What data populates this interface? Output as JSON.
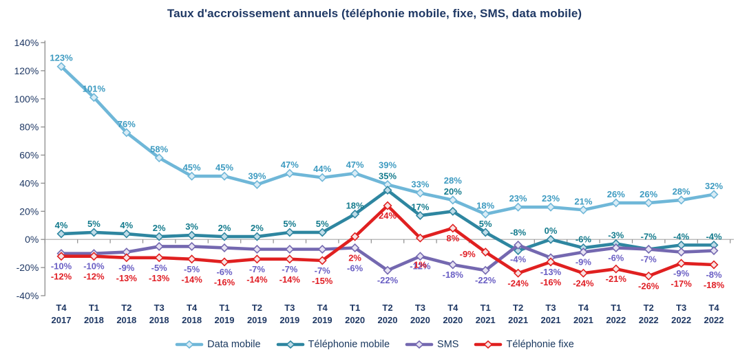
{
  "title": "Taux d'accroissement annuels (téléphonie mobile, fixe, SMS, data mobile)",
  "colors": {
    "title_text": "#1F3864",
    "axis_text": "#1F3864",
    "axis_line": "#8C8C8C",
    "zero_line": "#A6A6A6",
    "background": "#FFFFFF"
  },
  "chart_data": {
    "type": "line",
    "title": "Taux d'accroissement annuels (téléphonie mobile, fixe, SMS, data mobile)",
    "xlabel": "",
    "ylabel": "",
    "unit": "%",
    "ylim": [
      -40,
      140
    ],
    "y_tick_step": 20,
    "y_ticks": [
      "140%",
      "120%",
      "100%",
      "80%",
      "60%",
      "40%",
      "20%",
      "0%",
      "-20%",
      "-40%"
    ],
    "grid": "zero-line-only",
    "legend_position": "bottom",
    "categories": [
      [
        "T4",
        "2017"
      ],
      [
        "T1",
        "2018"
      ],
      [
        "T2",
        "2018"
      ],
      [
        "T3",
        "2018"
      ],
      [
        "T4",
        "2018"
      ],
      [
        "T1",
        "2019"
      ],
      [
        "T2",
        "2019"
      ],
      [
        "T3",
        "2019"
      ],
      [
        "T4",
        "2019"
      ],
      [
        "T1",
        "2020"
      ],
      [
        "T2",
        "2020"
      ],
      [
        "T3",
        "2020"
      ],
      [
        "T4",
        "2020"
      ],
      [
        "T1",
        "2021"
      ],
      [
        "T2",
        "2021"
      ],
      [
        "T3",
        "2021"
      ],
      [
        "T4",
        "2021"
      ],
      [
        "T1",
        "2022"
      ],
      [
        "T2",
        "2022"
      ],
      [
        "T3",
        "2022"
      ],
      [
        "T4",
        "2022"
      ]
    ],
    "series": [
      {
        "name": "Data mobile",
        "color": "#6FB7D8",
        "label_color": "#3E9BC1",
        "marker_fill": "#D9ECF6",
        "label_pos": "above",
        "values": [
          123,
          101,
          76,
          58,
          45,
          45,
          39,
          47,
          44,
          47,
          39,
          33,
          28,
          18,
          23,
          23,
          21,
          26,
          26,
          28,
          32
        ]
      },
      {
        "name": "Téléphonie mobile",
        "color": "#2E86A0",
        "label_color": "#147B8D",
        "marker_fill": "#BFDCE8",
        "label_pos": "above",
        "values": [
          4,
          5,
          4,
          2,
          3,
          2,
          2,
          5,
          5,
          18,
          35,
          17,
          20,
          5,
          -8,
          0,
          -6,
          -3,
          -7,
          -4,
          -4
        ]
      },
      {
        "name": "SMS",
        "color": "#7468B0",
        "label_color": "#6A5FC4",
        "marker_fill": "#E6E2F2",
        "label_pos": "below",
        "values": [
          -10,
          -10,
          -9,
          -5,
          -5,
          -6,
          -7,
          -7,
          -7,
          -6,
          -22,
          -12,
          -18,
          -22,
          -4,
          -13,
          -9,
          -6,
          -7,
          -9,
          -8
        ]
      },
      {
        "name": "Téléphonie fixe",
        "color": "#E02020",
        "label_color": "#E01F26",
        "marker_fill": "#F8E3E3",
        "label_pos": "below",
        "values": [
          -12,
          -12,
          -13,
          -13,
          -14,
          -16,
          -14,
          -14,
          -15,
          2,
          24,
          1,
          8,
          -9,
          -24,
          -16,
          -24,
          -21,
          -26,
          -17,
          -18
        ]
      }
    ]
  }
}
